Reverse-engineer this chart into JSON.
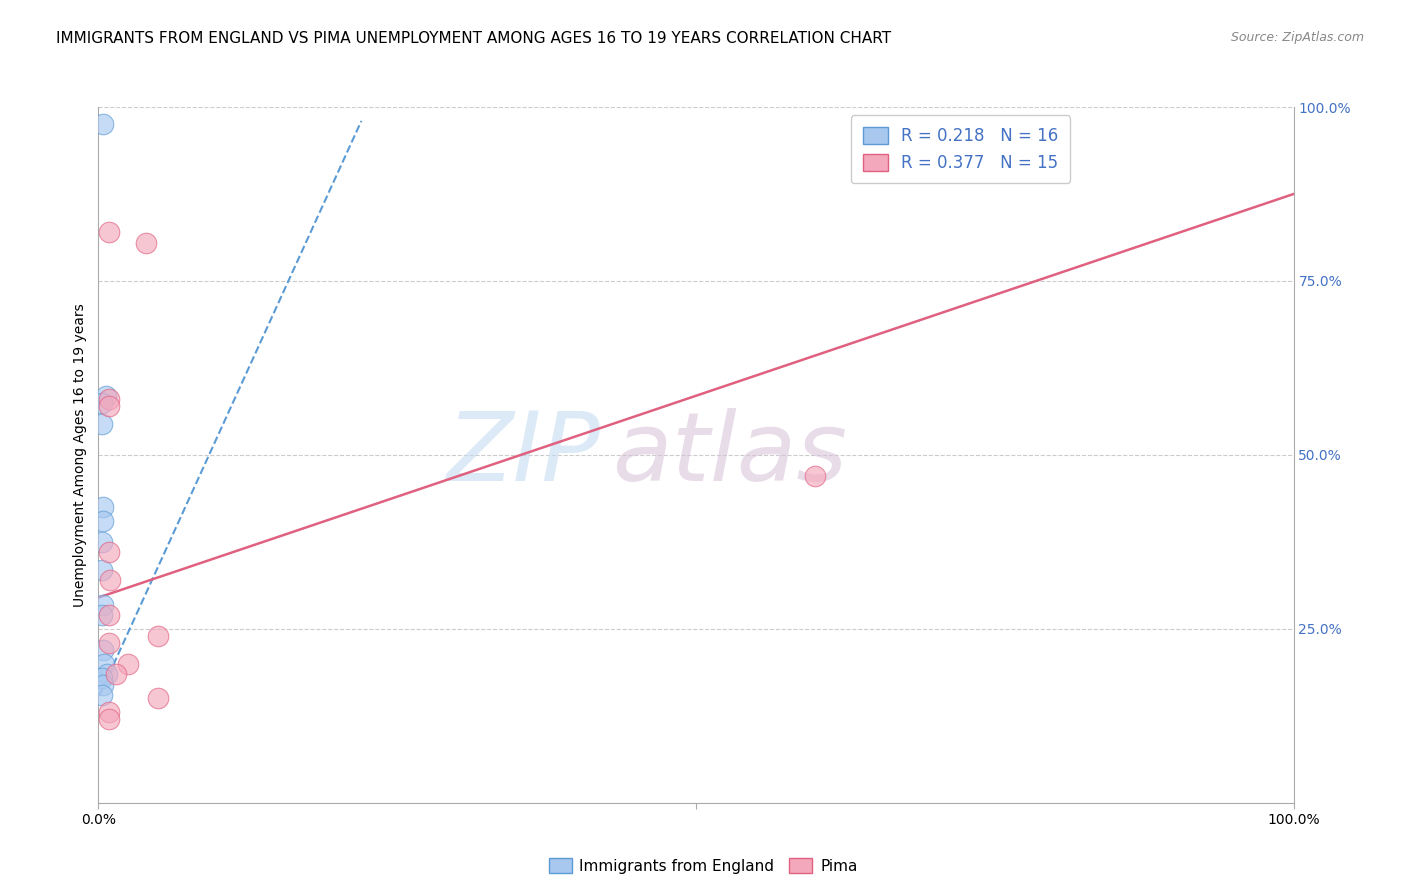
{
  "title": "IMMIGRANTS FROM ENGLAND VS PIMA UNEMPLOYMENT AMONG AGES 16 TO 19 YEARS CORRELATION CHART",
  "source": "Source: ZipAtlas.com",
  "ylabel": "Unemployment Among Ages 16 to 19 years",
  "xlim": [
    0,
    1.0
  ],
  "ylim": [
    0,
    1.0
  ],
  "ytick_positions": [
    0.0,
    0.25,
    0.5,
    0.75,
    1.0
  ],
  "yticklabels_right": [
    "",
    "25.0%",
    "50.0%",
    "75.0%",
    "100.0%"
  ],
  "R_blue": "0.218",
  "N_blue": "16",
  "R_pink": "0.377",
  "N_pink": "15",
  "blue_scatter_x": [
    0.004,
    0.006,
    0.003,
    0.003,
    0.004,
    0.004,
    0.003,
    0.003,
    0.004,
    0.003,
    0.004,
    0.005,
    0.007,
    0.003,
    0.004,
    0.003
  ],
  "blue_scatter_y": [
    0.975,
    0.585,
    0.575,
    0.545,
    0.425,
    0.405,
    0.375,
    0.335,
    0.285,
    0.27,
    0.22,
    0.2,
    0.185,
    0.18,
    0.17,
    0.155
  ],
  "pink_scatter_x": [
    0.009,
    0.04,
    0.009,
    0.009,
    0.009,
    0.01,
    0.009,
    0.05,
    0.009,
    0.025,
    0.015,
    0.05,
    0.009,
    0.009,
    0.6
  ],
  "pink_scatter_y": [
    0.82,
    0.805,
    0.58,
    0.57,
    0.36,
    0.32,
    0.27,
    0.24,
    0.23,
    0.2,
    0.185,
    0.15,
    0.13,
    0.12,
    0.47
  ],
  "blue_line_x0": 0.001,
  "blue_line_x1": 0.22,
  "blue_line_y0": 0.155,
  "blue_line_y1": 0.98,
  "pink_line_x0": 0.0,
  "pink_line_x1": 1.0,
  "pink_line_y0": 0.295,
  "pink_line_y1": 0.875,
  "blue_color": "#A8C8F0",
  "pink_color": "#F4A8BC",
  "blue_edge_color": "#5B9BD5",
  "pink_edge_color": "#E06080",
  "blue_line_color": "#5B9BD5",
  "pink_line_color": "#E06080",
  "watermark_zip_color": "#C8DCF0",
  "watermark_atlas_color": "#D8C8E8",
  "background_color": "#ffffff",
  "grid_color": "#cccccc",
  "legend_color": "#4472C4",
  "title_fontsize": 11,
  "axis_tick_fontsize": 10,
  "marker_size": 220,
  "marker_alpha": 0.65
}
